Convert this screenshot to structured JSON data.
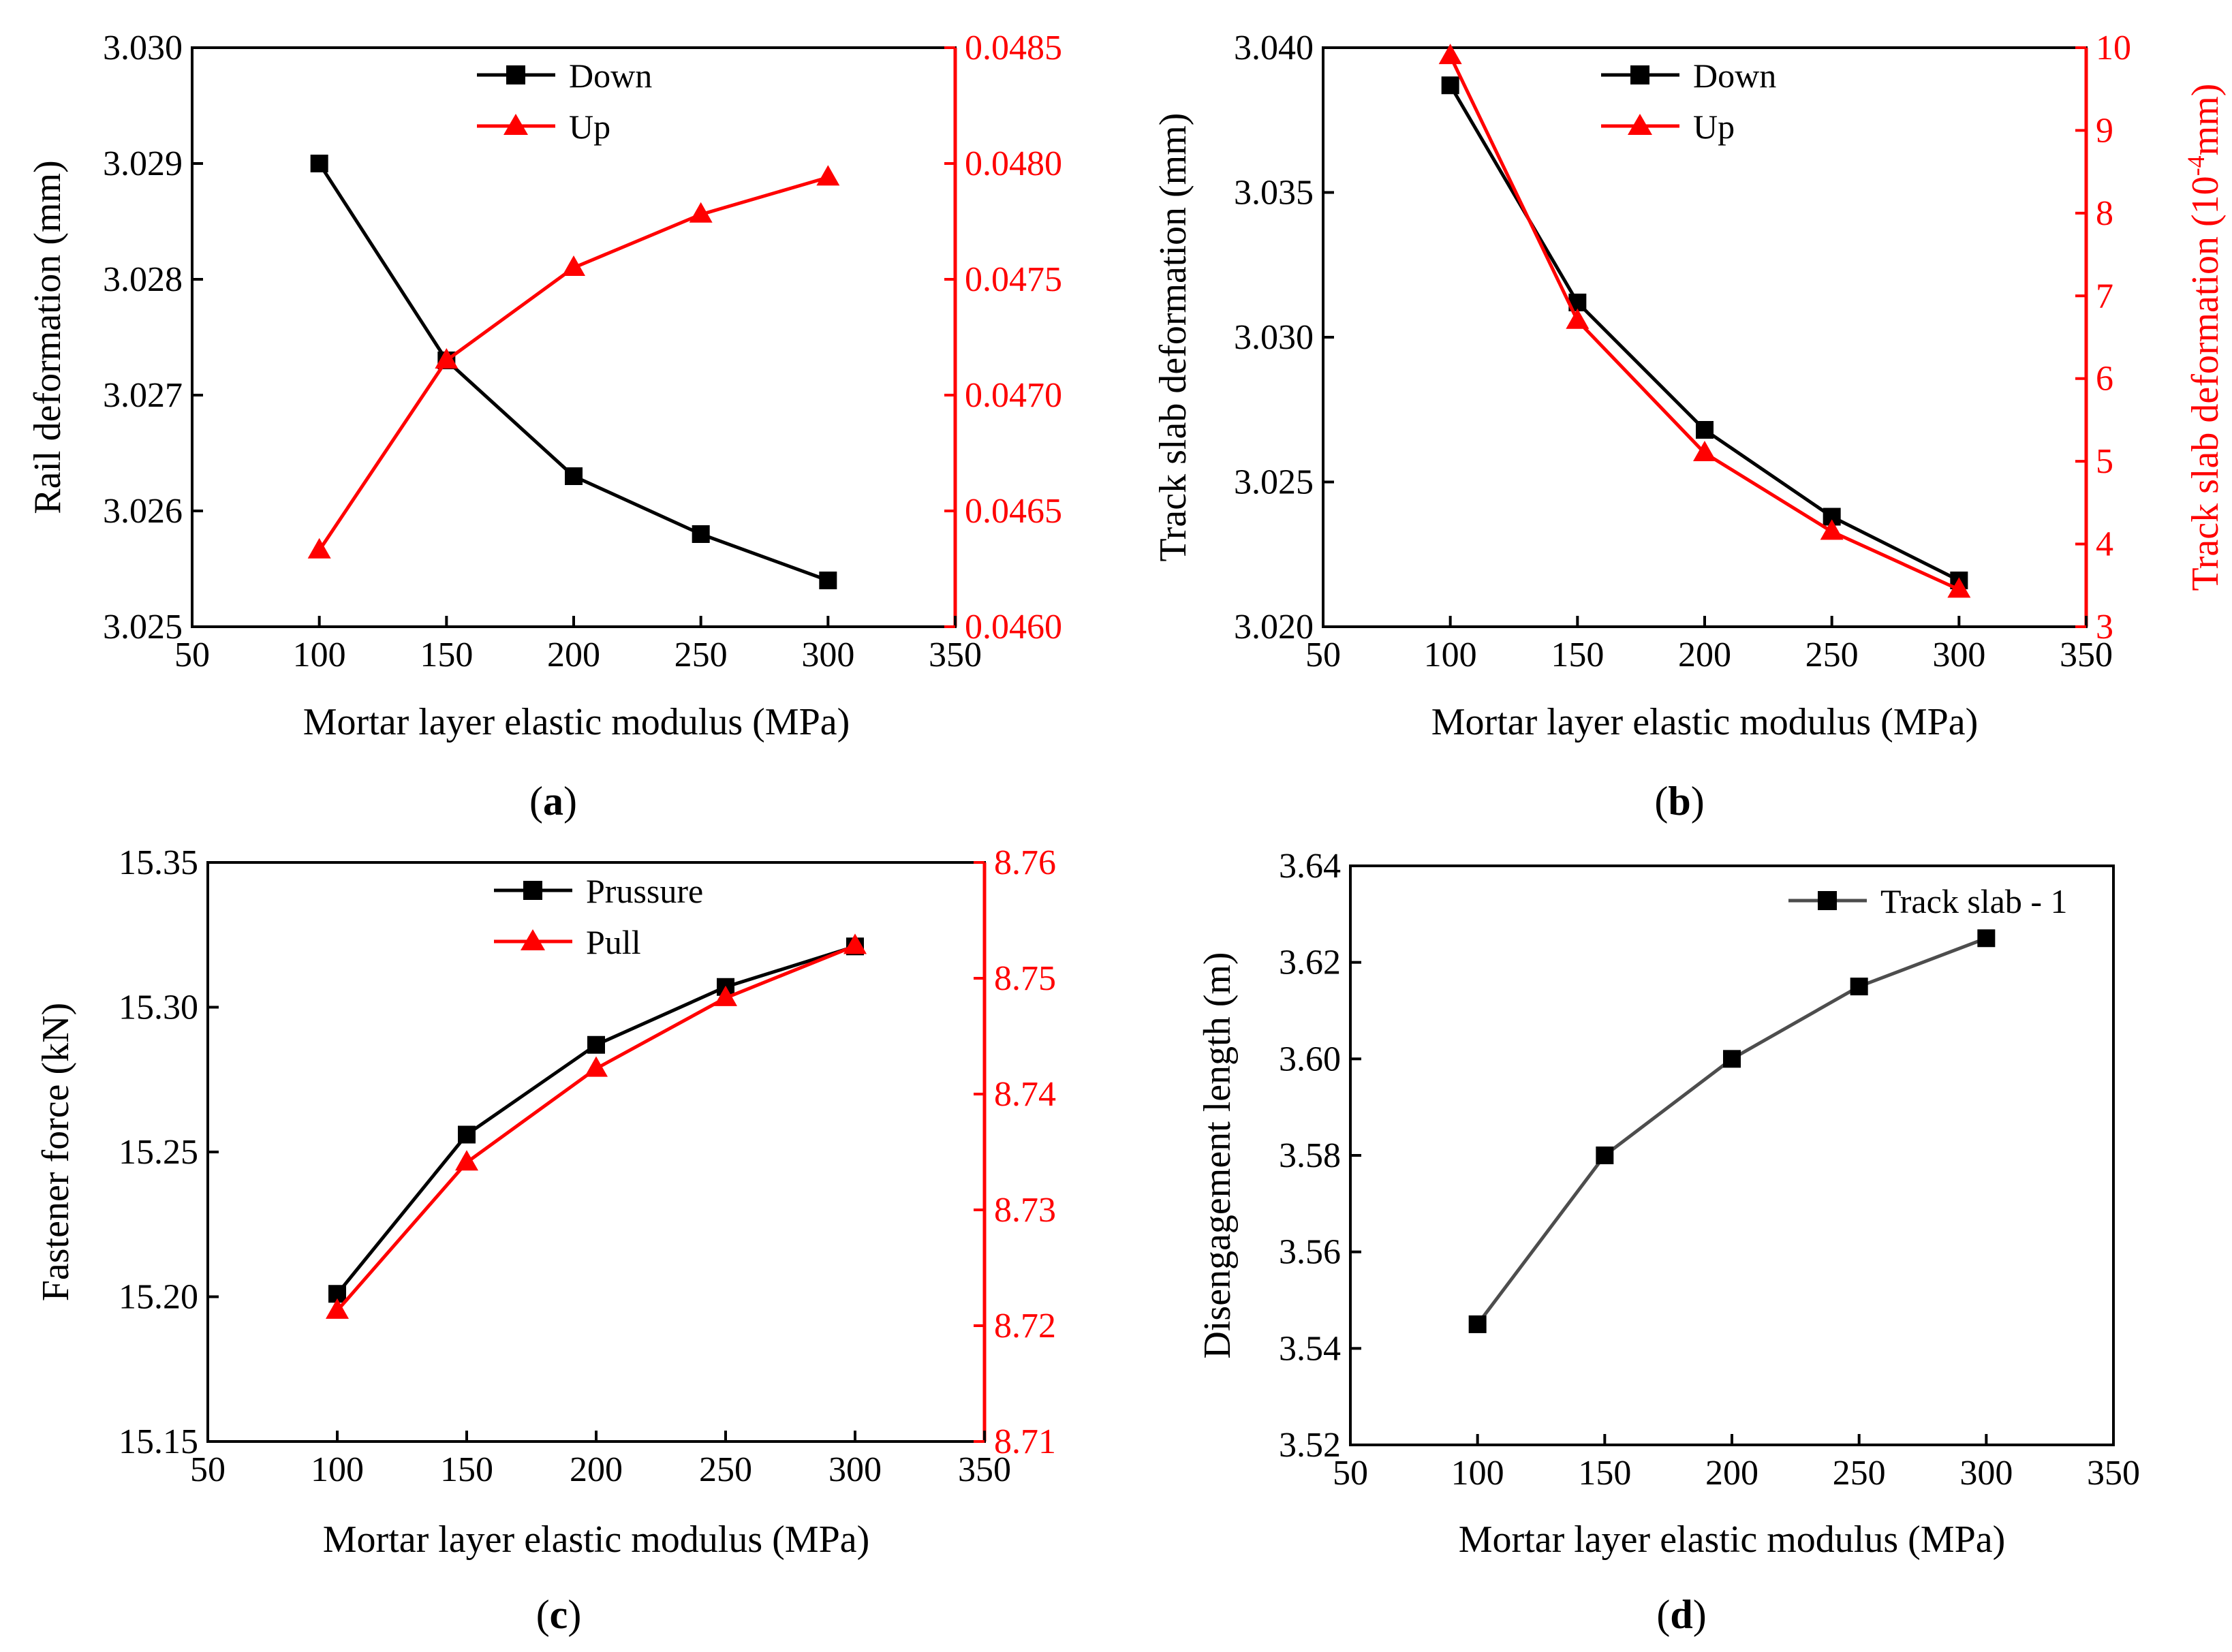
{
  "chart_data": [
    {
      "type": "line",
      "caption": "a",
      "xlabel": "Mortar layer elastic modulus (MPa)",
      "ylabel": "Rail deformation (mm)",
      "y2label": "",
      "xlim": [
        50,
        350
      ],
      "xticks": [
        "50",
        "100",
        "150",
        "200",
        "250",
        "300",
        "350"
      ],
      "ylim": [
        3.025,
        3.03
      ],
      "yticks": [
        "3.025",
        "3.026",
        "3.027",
        "3.028",
        "3.029",
        "3.030"
      ],
      "y2lim": [
        0.046,
        0.0485
      ],
      "y2ticks": [
        "0.0460",
        "0.0465",
        "0.0470",
        "0.0475",
        "0.0480",
        "0.0485"
      ],
      "x": [
        100,
        150,
        200,
        250,
        300
      ],
      "series": [
        {
          "name": "Down",
          "axis": "left",
          "marker": "square",
          "color": "#000000",
          "values": [
            3.029,
            3.0273,
            3.0263,
            3.0258,
            3.0254
          ]
        },
        {
          "name": "Up",
          "axis": "right",
          "marker": "triangle",
          "color": "#ff0000",
          "values": [
            0.04633,
            0.04715,
            0.04755,
            0.04778,
            0.04794
          ]
        }
      ]
    },
    {
      "type": "line",
      "caption": "b",
      "xlabel": "Mortar layer elastic modulus (MPa)",
      "ylabel": "Track slab deformation (mm)",
      "y2label_parts": [
        "Track slab deformation (10",
        "-4",
        "mm)"
      ],
      "xlim": [
        50,
        350
      ],
      "xticks": [
        "50",
        "100",
        "150",
        "200",
        "250",
        "300",
        "350"
      ],
      "ylim": [
        3.02,
        3.04
      ],
      "yticks": [
        "3.020",
        "3.025",
        "3.030",
        "3.035",
        "3.040"
      ],
      "y2lim": [
        3,
        10
      ],
      "y2ticks": [
        "3",
        "4",
        "5",
        "6",
        "7",
        "8",
        "9",
        "10"
      ],
      "x": [
        100,
        150,
        200,
        250,
        300
      ],
      "series": [
        {
          "name": "Down",
          "axis": "left",
          "marker": "square",
          "color": "#000000",
          "values": [
            3.0387,
            3.0312,
            3.0268,
            3.0238,
            3.0216
          ]
        },
        {
          "name": "Up",
          "axis": "right",
          "marker": "triangle",
          "color": "#ff0000",
          "values": [
            9.9,
            6.7,
            5.1,
            4.15,
            3.45
          ]
        }
      ]
    },
    {
      "type": "line",
      "caption": "c",
      "xlabel": "Mortar layer elastic modulus (MPa)",
      "ylabel": "Fastener force (kN)",
      "xlim": [
        50,
        350
      ],
      "xticks": [
        "50",
        "100",
        "150",
        "200",
        "250",
        "300",
        "350"
      ],
      "ylim": [
        15.15,
        15.35
      ],
      "yticks": [
        "15.15",
        "15.20",
        "15.25",
        "15.30",
        "15.35"
      ],
      "y2lim": [
        8.71,
        8.76
      ],
      "y2ticks": [
        "8.71",
        "8.72",
        "8.73",
        "8.74",
        "8.75",
        "8.76"
      ],
      "x": [
        100,
        150,
        200,
        250,
        300
      ],
      "series": [
        {
          "name": "Prussure",
          "axis": "left",
          "marker": "square",
          "color": "#000000",
          "values": [
            15.201,
            15.256,
            15.287,
            15.307,
            15.321
          ]
        },
        {
          "name": "Pull",
          "axis": "right",
          "marker": "triangle",
          "color": "#ff0000",
          "values": [
            8.7213,
            8.7341,
            8.7422,
            8.7483,
            8.7528
          ]
        }
      ]
    },
    {
      "type": "line",
      "caption": "d",
      "xlabel": "Mortar layer elastic modulus (MPa)",
      "ylabel": "Disengagement length (m)",
      "xlim": [
        50,
        350
      ],
      "xticks": [
        "50",
        "100",
        "150",
        "200",
        "250",
        "300",
        "350"
      ],
      "ylim": [
        3.52,
        3.64
      ],
      "yticks": [
        "3.52",
        "3.54",
        "3.56",
        "3.58",
        "3.60",
        "3.62",
        "3.64"
      ],
      "x": [
        100,
        150,
        200,
        250,
        300
      ],
      "series": [
        {
          "name": "Track slab - 1",
          "axis": "left",
          "marker": "square",
          "color": "#4d4d4d",
          "values": [
            3.545,
            3.58,
            3.6,
            3.615,
            3.625
          ]
        }
      ]
    }
  ],
  "colors": {
    "primary": "#000000",
    "secondary": "#ff0000",
    "single": "#4d4d4d"
  }
}
